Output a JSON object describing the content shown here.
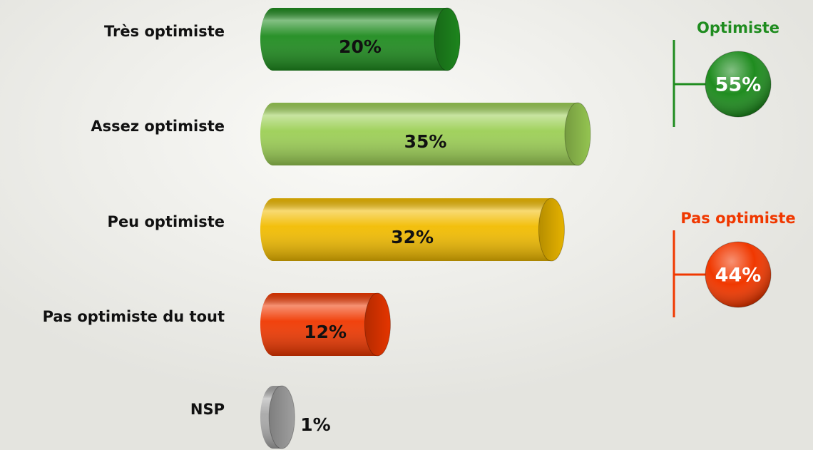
{
  "chart_data": {
    "type": "bar",
    "orientation": "horizontal",
    "categories": [
      "Très optimiste",
      "Assez optimiste",
      "Peu optimiste",
      "Pas optimiste du tout",
      "NSP"
    ],
    "values": [
      20,
      35,
      32,
      12,
      1
    ],
    "value_labels": [
      "20%",
      "35%",
      "32%",
      "12%",
      "1%"
    ],
    "colors": [
      "#1f8c1f",
      "#9ccf55",
      "#f2bc00",
      "#f03800",
      "#a8a8a8"
    ],
    "groups": [
      {
        "label": "Optimiste",
        "value": 55,
        "value_label": "55%",
        "color": "#1f8c1f"
      },
      {
        "label": "Pas optimiste",
        "value": 44,
        "value_label": "44%",
        "color": "#f03800"
      }
    ]
  }
}
